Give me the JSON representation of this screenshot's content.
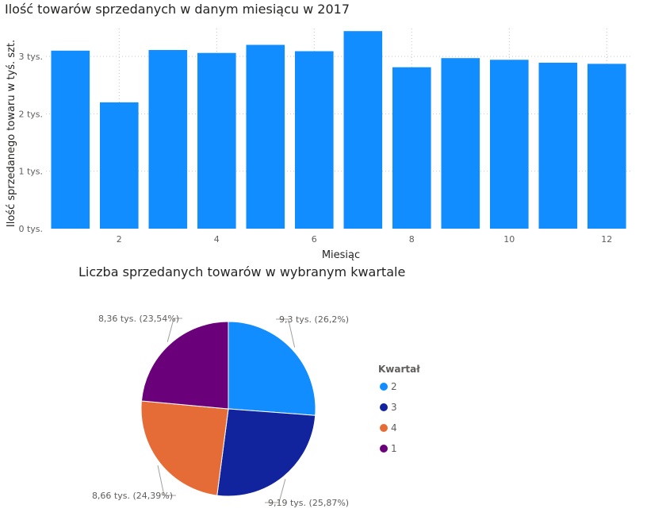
{
  "chart_data": [
    {
      "type": "bar",
      "title": "Ilość towarów sprzedanych w danym miesiącu w 2017",
      "xlabel": "Miesiąc",
      "ylabel": "Ilość sprzedanego towaru w tyś. szt.",
      "x": [
        1,
        2,
        3,
        4,
        5,
        6,
        7,
        8,
        9,
        10,
        11,
        12
      ],
      "values": [
        3.1,
        2.2,
        3.11,
        3.06,
        3.2,
        3.09,
        3.44,
        2.81,
        2.97,
        2.94,
        2.89,
        2.87
      ],
      "ylim": [
        0,
        3.5
      ],
      "yticks": [
        {
          "value": 0,
          "label": "0 tys."
        },
        {
          "value": 1,
          "label": "1 tys."
        },
        {
          "value": 2,
          "label": "2 tys."
        },
        {
          "value": 3,
          "label": "3 tys."
        }
      ],
      "xticks": [
        {
          "value": 2,
          "label": "2"
        },
        {
          "value": 4,
          "label": "4"
        },
        {
          "value": 6,
          "label": "6"
        },
        {
          "value": 8,
          "label": "8"
        },
        {
          "value": 10,
          "label": "10"
        },
        {
          "value": 12,
          "label": "12"
        }
      ],
      "grid": true,
      "color": "#118DFF"
    },
    {
      "type": "pie",
      "title": "Liczba sprzedanych towarów w wybranym kwartale",
      "legend_title": "Kwartał",
      "legend_position": "right",
      "slices": [
        {
          "name": "2",
          "value": 9.3,
          "label": "9,3 tys. (26,2%)",
          "color": "#118DFF"
        },
        {
          "name": "3",
          "value": 9.19,
          "label": "9,19 tys. (25,87%)",
          "color": "#12239E"
        },
        {
          "name": "4",
          "value": 8.66,
          "label": "8,66 tys. (24,39%)",
          "color": "#E66C37"
        },
        {
          "name": "1",
          "value": 8.36,
          "label": "8,36 tys. (23,54%)",
          "color": "#6B007B"
        }
      ]
    }
  ]
}
